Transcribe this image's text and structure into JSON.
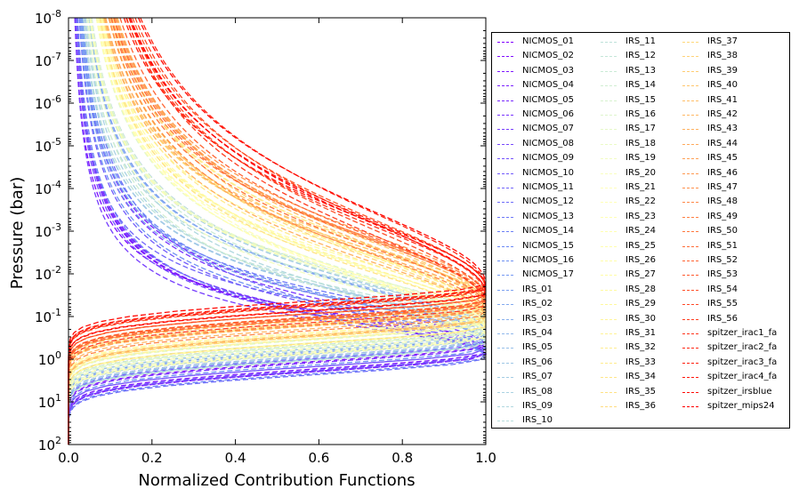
{
  "chart_data": {
    "type": "line",
    "xlabel": "Normalized Contribution Functions",
    "ylabel": "Pressure (bar)",
    "xlim": [
      0.0,
      1.0
    ],
    "ylim": [
      100,
      1e-08
    ],
    "y_scale": "log",
    "y_inverted": true,
    "x_ticks": [
      "0.0",
      "0.2",
      "0.4",
      "0.6",
      "0.8",
      "1.0"
    ],
    "y_ticks": [
      {
        "base": "10",
        "exp": "-8"
      },
      {
        "base": "10",
        "exp": "-7"
      },
      {
        "base": "10",
        "exp": "-6"
      },
      {
        "base": "10",
        "exp": "-5"
      },
      {
        "base": "10",
        "exp": "-4"
      },
      {
        "base": "10",
        "exp": "-3"
      },
      {
        "base": "10",
        "exp": "-2"
      },
      {
        "base": "10",
        "exp": "-1"
      },
      {
        "base": "10",
        "exp": "0"
      },
      {
        "base": "10",
        "exp": "1"
      },
      {
        "base": "10",
        "exp": "2"
      }
    ],
    "line_style": "dashed",
    "legend_position": "right, outside plot",
    "legend_columns": 3,
    "series": [
      {
        "name": "NICMOS_01"
      },
      {
        "name": "NICMOS_02"
      },
      {
        "name": "NICMOS_03"
      },
      {
        "name": "NICMOS_04"
      },
      {
        "name": "NICMOS_05"
      },
      {
        "name": "NICMOS_06"
      },
      {
        "name": "NICMOS_07"
      },
      {
        "name": "NICMOS_08"
      },
      {
        "name": "NICMOS_09"
      },
      {
        "name": "NICMOS_10"
      },
      {
        "name": "NICMOS_11"
      },
      {
        "name": "NICMOS_12"
      },
      {
        "name": "NICMOS_13"
      },
      {
        "name": "NICMOS_14"
      },
      {
        "name": "NICMOS_15"
      },
      {
        "name": "NICMOS_16"
      },
      {
        "name": "NICMOS_17"
      },
      {
        "name": "IRS_01"
      },
      {
        "name": "IRS_02"
      },
      {
        "name": "IRS_03"
      },
      {
        "name": "IRS_04"
      },
      {
        "name": "IRS_05"
      },
      {
        "name": "IRS_06"
      },
      {
        "name": "IRS_07"
      },
      {
        "name": "IRS_08"
      },
      {
        "name": "IRS_09"
      },
      {
        "name": "IRS_10"
      },
      {
        "name": "IRS_11"
      },
      {
        "name": "IRS_12"
      },
      {
        "name": "IRS_13"
      },
      {
        "name": "IRS_14"
      },
      {
        "name": "IRS_15"
      },
      {
        "name": "IRS_16"
      },
      {
        "name": "IRS_17"
      },
      {
        "name": "IRS_18"
      },
      {
        "name": "IRS_19"
      },
      {
        "name": "IRS_20"
      },
      {
        "name": "IRS_21"
      },
      {
        "name": "IRS_22"
      },
      {
        "name": "IRS_23"
      },
      {
        "name": "IRS_24"
      },
      {
        "name": "IRS_25"
      },
      {
        "name": "IRS_26"
      },
      {
        "name": "IRS_27"
      },
      {
        "name": "IRS_28"
      },
      {
        "name": "IRS_29"
      },
      {
        "name": "IRS_30"
      },
      {
        "name": "IRS_31"
      },
      {
        "name": "IRS_32"
      },
      {
        "name": "IRS_33"
      },
      {
        "name": "IRS_34"
      },
      {
        "name": "IRS_35"
      },
      {
        "name": "IRS_36"
      },
      {
        "name": "IRS_37"
      },
      {
        "name": "IRS_38"
      },
      {
        "name": "IRS_39"
      },
      {
        "name": "IRS_40"
      },
      {
        "name": "IRS_41"
      },
      {
        "name": "IRS_42"
      },
      {
        "name": "IRS_43"
      },
      {
        "name": "IRS_44"
      },
      {
        "name": "IRS_45"
      },
      {
        "name": "IRS_46"
      },
      {
        "name": "IRS_47"
      },
      {
        "name": "IRS_48"
      },
      {
        "name": "IRS_49"
      },
      {
        "name": "IRS_50"
      },
      {
        "name": "IRS_51"
      },
      {
        "name": "IRS_52"
      },
      {
        "name": "IRS_53"
      },
      {
        "name": "IRS_54"
      },
      {
        "name": "IRS_55"
      },
      {
        "name": "IRS_56"
      },
      {
        "name": "spitzer_irac1_fa"
      },
      {
        "name": "spitzer_irac2_fa"
      },
      {
        "name": "spitzer_irac3_fa"
      },
      {
        "name": "spitzer_irac4_fa"
      },
      {
        "name": "spitzer_irsblue"
      },
      {
        "name": "spitzer_mips24"
      }
    ]
  }
}
